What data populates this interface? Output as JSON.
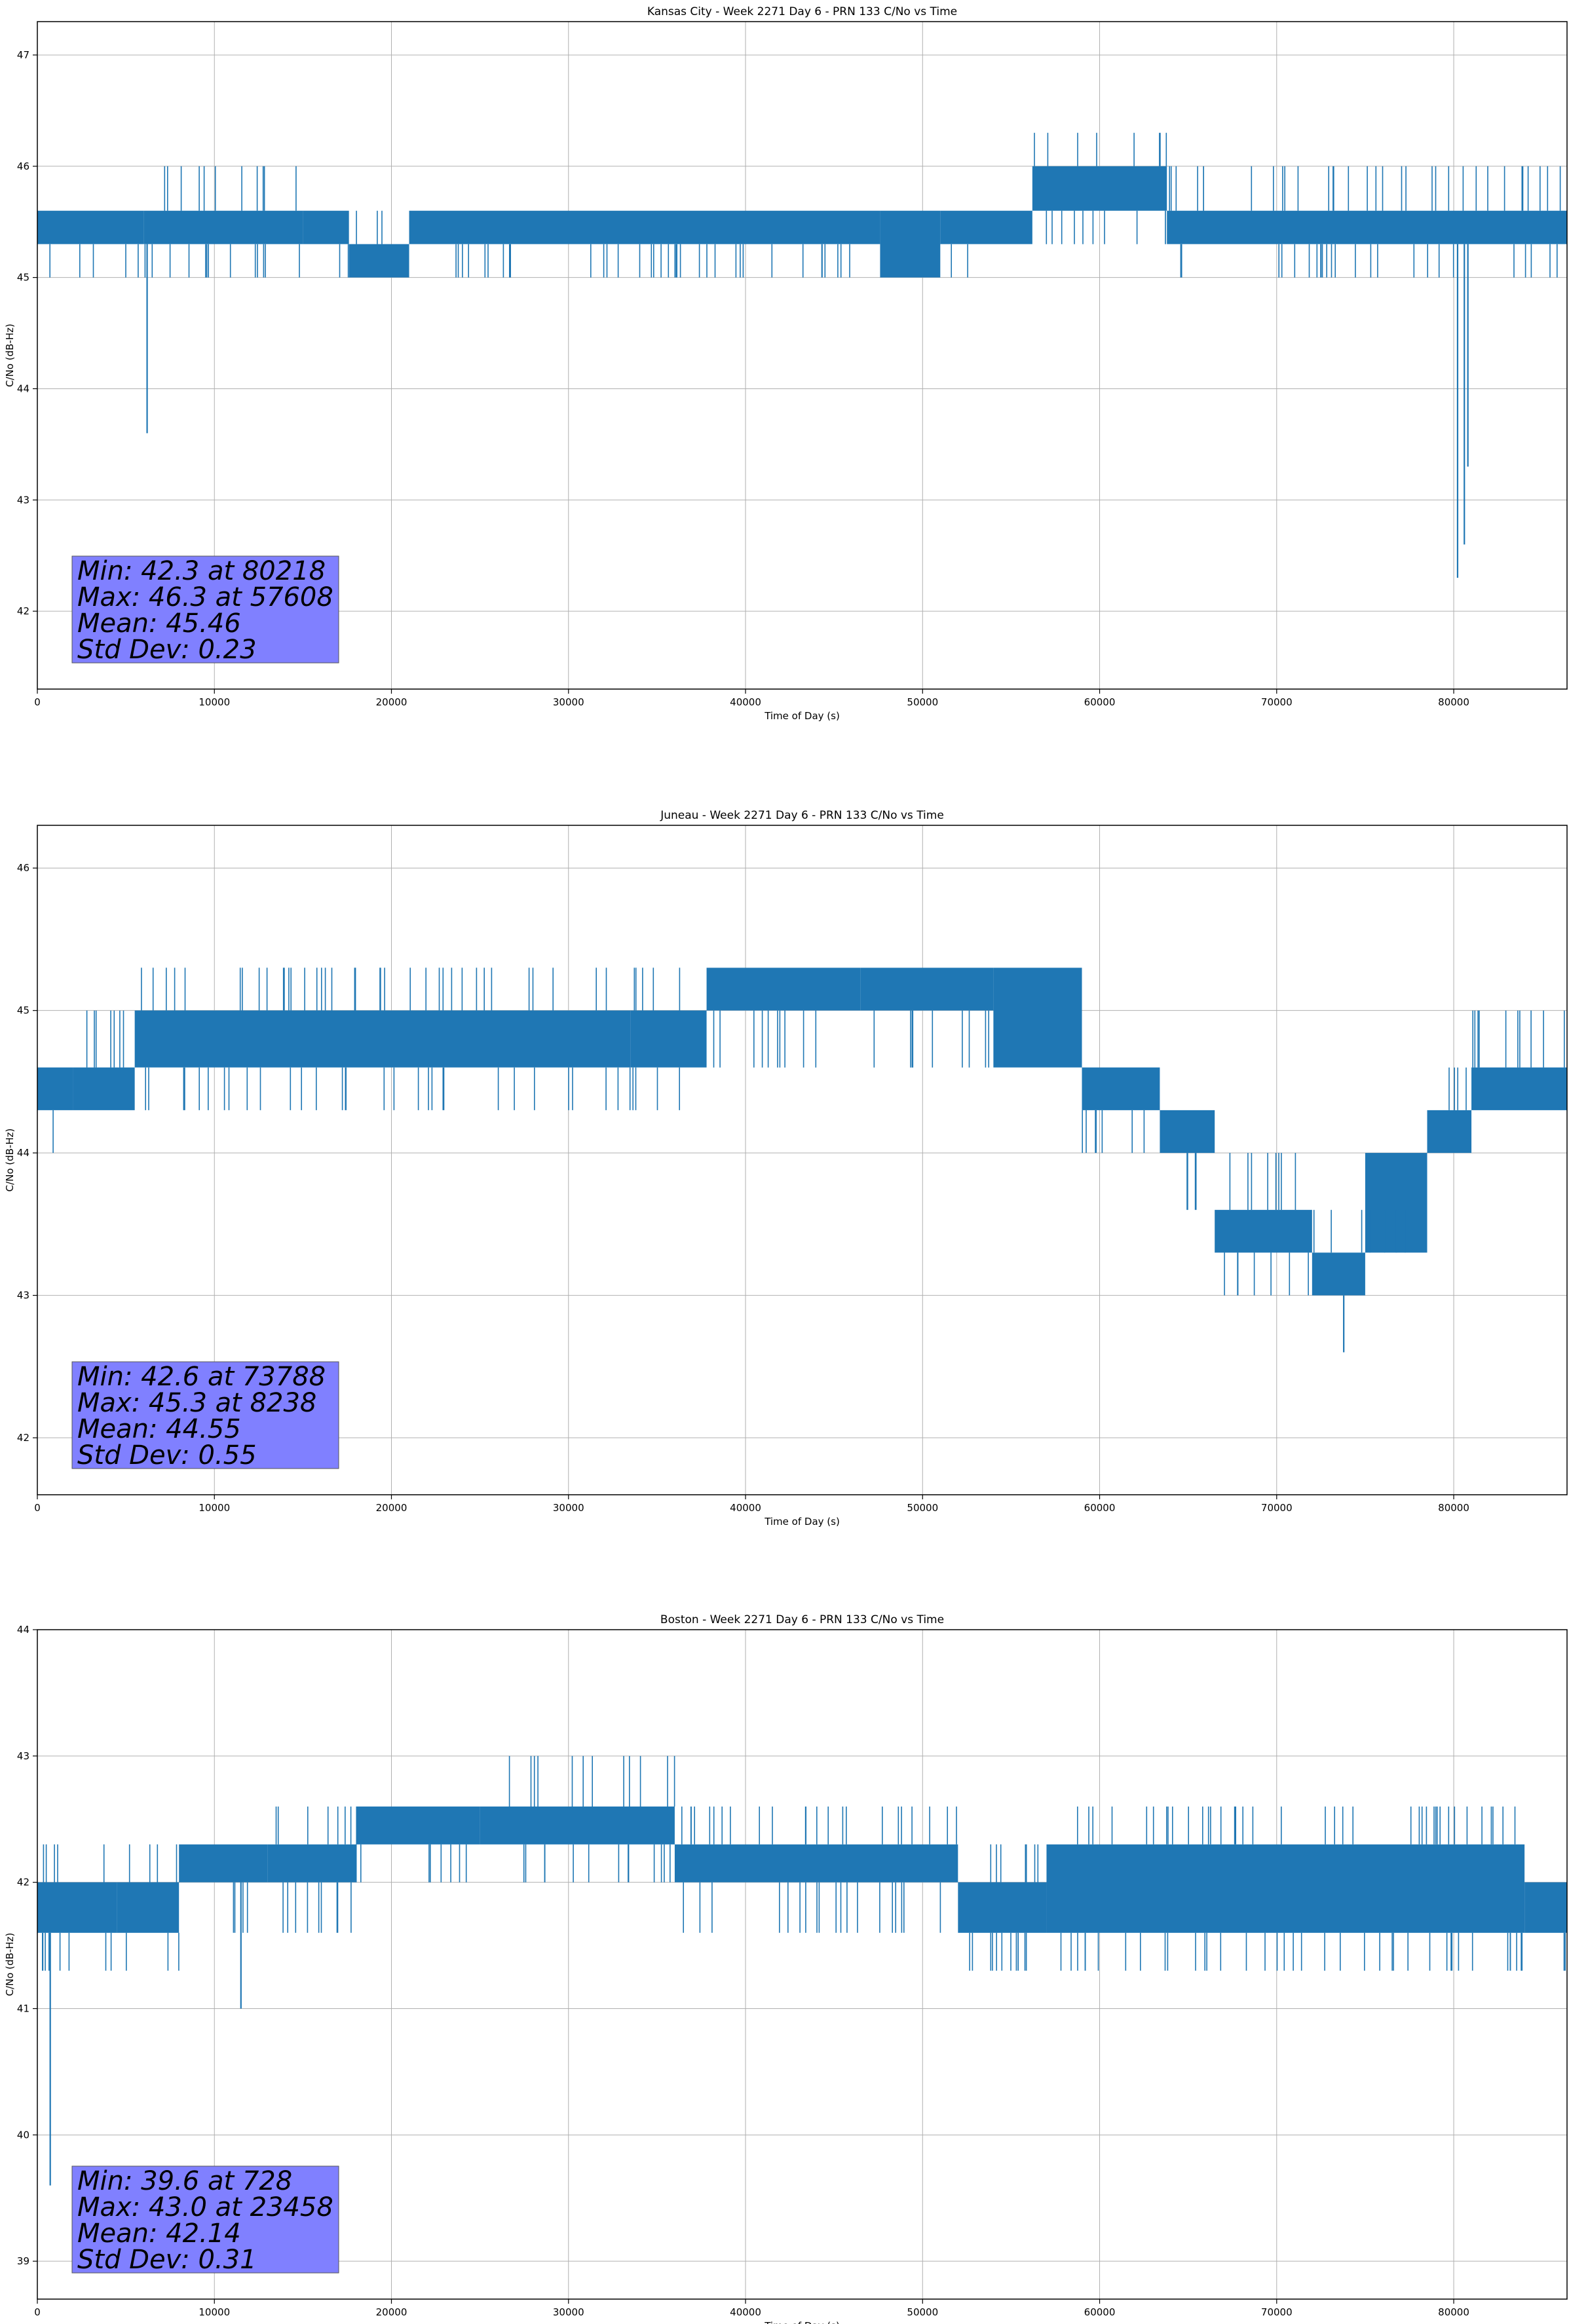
{
  "figure": {
    "background": "#ffffff",
    "line_color": "#1f77b4",
    "grid_color": "#b0b0b0",
    "stats_box_color": "#8080ff"
  },
  "chart_data": [
    {
      "type": "line",
      "title": "Kansas City - Week 2271 Day 6 - PRN 133 C/No vs Time",
      "xlabel": "Time of Day (s)",
      "ylabel": "C/No (dB-Hz)",
      "xlim": [
        0,
        86400
      ],
      "ylim": [
        41.3,
        47.3
      ],
      "xticks": [
        0,
        10000,
        20000,
        30000,
        40000,
        50000,
        60000,
        70000,
        80000
      ],
      "yticks": [
        42,
        43,
        44,
        45,
        46,
        47
      ],
      "grid": true,
      "series": [
        {
          "segments": [
            {
              "x": [
                0,
                6000
              ],
              "range": [
                45.3,
                45.6
              ],
              "spikes": [
                45.0
              ]
            },
            {
              "x": [
                6000,
                15000
              ],
              "range": [
                45.3,
                45.6
              ],
              "spikes": [
                46.0,
                45.0
              ]
            },
            {
              "x": [
                15000,
                17600
              ],
              "range": [
                45.3,
                45.6
              ],
              "spikes": [
                45.0
              ]
            },
            {
              "x": [
                17600,
                21000
              ],
              "range": [
                45.0,
                45.3
              ],
              "spikes": [
                45.6
              ]
            },
            {
              "x": [
                21000,
                47600
              ],
              "range": [
                45.3,
                45.6
              ],
              "spikes": [
                45.0
              ]
            },
            {
              "x": [
                47600,
                51000
              ],
              "range": [
                45.0,
                45.6
              ],
              "spikes": [
                45.0
              ]
            },
            {
              "x": [
                51000,
                56200
              ],
              "range": [
                45.3,
                45.6
              ],
              "spikes": [
                45.0
              ]
            },
            {
              "x": [
                56200,
                63800
              ],
              "range": [
                45.6,
                46.0
              ],
              "spikes": [
                46.3,
                45.3
              ]
            },
            {
              "x": [
                63800,
                86400
              ],
              "range": [
                45.3,
                45.6
              ],
              "spikes": [
                46.0,
                45.0
              ]
            }
          ],
          "dips": [
            [
              6200,
              43.6
            ],
            [
              80218,
              42.3
            ],
            [
              80600,
              42.6
            ],
            [
              80800,
              43.3
            ]
          ]
        }
      ],
      "stats": [
        "Min: 42.3 at 80218",
        "Max: 46.3 at 57608",
        "Mean: 45.46",
        "Std Dev: 0.23"
      ]
    },
    {
      "type": "line",
      "title": "Juneau - Week 2271 Day 6 - PRN 133 C/No vs Time",
      "xlabel": "Time of Day (s)",
      "ylabel": "C/No (dB-Hz)",
      "xlim": [
        0,
        86400
      ],
      "ylim": [
        41.6,
        46.3
      ],
      "xticks": [
        0,
        10000,
        20000,
        30000,
        40000,
        50000,
        60000,
        70000,
        80000
      ],
      "yticks": [
        42,
        43,
        44,
        45,
        46
      ],
      "grid": true,
      "series": [
        {
          "segments": [
            {
              "x": [
                0,
                2000
              ],
              "range": [
                44.3,
                44.6
              ],
              "spikes": [
                44.0
              ]
            },
            {
              "x": [
                2000,
                5500
              ],
              "range": [
                44.3,
                44.6
              ],
              "spikes": [
                45.0
              ]
            },
            {
              "x": [
                5500,
                33500
              ],
              "range": [
                44.6,
                45.0
              ],
              "spikes": [
                45.3,
                44.3
              ]
            },
            {
              "x": [
                33500,
                37800
              ],
              "range": [
                44.6,
                45.0
              ],
              "spikes": [
                45.3,
                44.3
              ]
            },
            {
              "x": [
                37800,
                46500
              ],
              "range": [
                45.0,
                45.3
              ],
              "spikes": [
                44.6
              ]
            },
            {
              "x": [
                46500,
                54000
              ],
              "range": [
                45.0,
                45.3
              ],
              "spikes": [
                44.6
              ]
            },
            {
              "x": [
                54000,
                59000
              ],
              "range": [
                44.6,
                45.3
              ],
              "spikes": [
                44.6
              ]
            },
            {
              "x": [
                59000,
                63400
              ],
              "range": [
                44.3,
                44.6
              ],
              "spikes": [
                44.0
              ]
            },
            {
              "x": [
                63400,
                66500
              ],
              "range": [
                44.0,
                44.3
              ],
              "spikes": [
                43.6
              ]
            },
            {
              "x": [
                66500,
                72000
              ],
              "range": [
                43.3,
                43.6
              ],
              "spikes": [
                44.0,
                43.0
              ]
            },
            {
              "x": [
                72000,
                75000
              ],
              "range": [
                43.0,
                43.3
              ],
              "spikes": [
                43.6
              ]
            },
            {
              "x": [
                75000,
                78500
              ],
              "range": [
                43.3,
                44.0
              ],
              "spikes": [
                43.6
              ]
            },
            {
              "x": [
                78500,
                81000
              ],
              "range": [
                44.0,
                44.3
              ],
              "spikes": [
                44.6
              ]
            },
            {
              "x": [
                81000,
                86400
              ],
              "range": [
                44.3,
                44.6
              ],
              "spikes": [
                45.0
              ]
            }
          ],
          "dips": [
            [
              73788,
              42.6
            ]
          ]
        }
      ],
      "stats": [
        "Min: 42.6 at 73788",
        "Max: 45.3 at 8238",
        "Mean: 44.55",
        "Std Dev: 0.55"
      ]
    },
    {
      "type": "line",
      "title": "Boston - Week 2271 Day 6 - PRN 133 C/No vs Time",
      "xlabel": "Time of Day (s)",
      "ylabel": "C/No (dB-Hz)",
      "xlim": [
        0,
        86400
      ],
      "ylim": [
        38.7,
        44.0
      ],
      "xticks": [
        0,
        10000,
        20000,
        30000,
        40000,
        50000,
        60000,
        70000,
        80000
      ],
      "yticks": [
        39,
        40,
        41,
        42,
        43,
        44
      ],
      "grid": true,
      "series": [
        {
          "segments": [
            {
              "x": [
                0,
                4500
              ],
              "range": [
                41.6,
                42.0
              ],
              "spikes": [
                42.3,
                41.3
              ]
            },
            {
              "x": [
                4500,
                8000
              ],
              "range": [
                41.6,
                42.0
              ],
              "spikes": [
                42.3,
                41.3
              ]
            },
            {
              "x": [
                8000,
                13000
              ],
              "range": [
                42.0,
                42.3
              ],
              "spikes": [
                41.6
              ]
            },
            {
              "x": [
                13000,
                18000
              ],
              "range": [
                42.0,
                42.3
              ],
              "spikes": [
                42.6,
                41.6
              ]
            },
            {
              "x": [
                18000,
                25000
              ],
              "range": [
                42.3,
                42.6
              ],
              "spikes": [
                42.0
              ]
            },
            {
              "x": [
                25000,
                36000
              ],
              "range": [
                42.3,
                42.6
              ],
              "spikes": [
                43.0,
                42.0
              ]
            },
            {
              "x": [
                36000,
                52000
              ],
              "range": [
                42.0,
                42.3
              ],
              "spikes": [
                42.6,
                41.6
              ]
            },
            {
              "x": [
                52000,
                57000
              ],
              "range": [
                41.6,
                42.0
              ],
              "spikes": [
                42.3,
                41.3
              ]
            },
            {
              "x": [
                57000,
                84000
              ],
              "range": [
                41.6,
                42.3
              ],
              "spikes": [
                42.6,
                41.3
              ]
            },
            {
              "x": [
                84000,
                86400
              ],
              "range": [
                41.6,
                42.0
              ],
              "spikes": [
                41.3
              ]
            }
          ],
          "dips": [
            [
              728,
              39.6
            ],
            [
              300,
              41.3
            ],
            [
              11500,
              41.0
            ]
          ]
        }
      ],
      "stats": [
        "Min: 39.6 at 728",
        "Max: 43.0 at 23458",
        "Mean: 42.14",
        "Std Dev: 0.31"
      ]
    }
  ]
}
